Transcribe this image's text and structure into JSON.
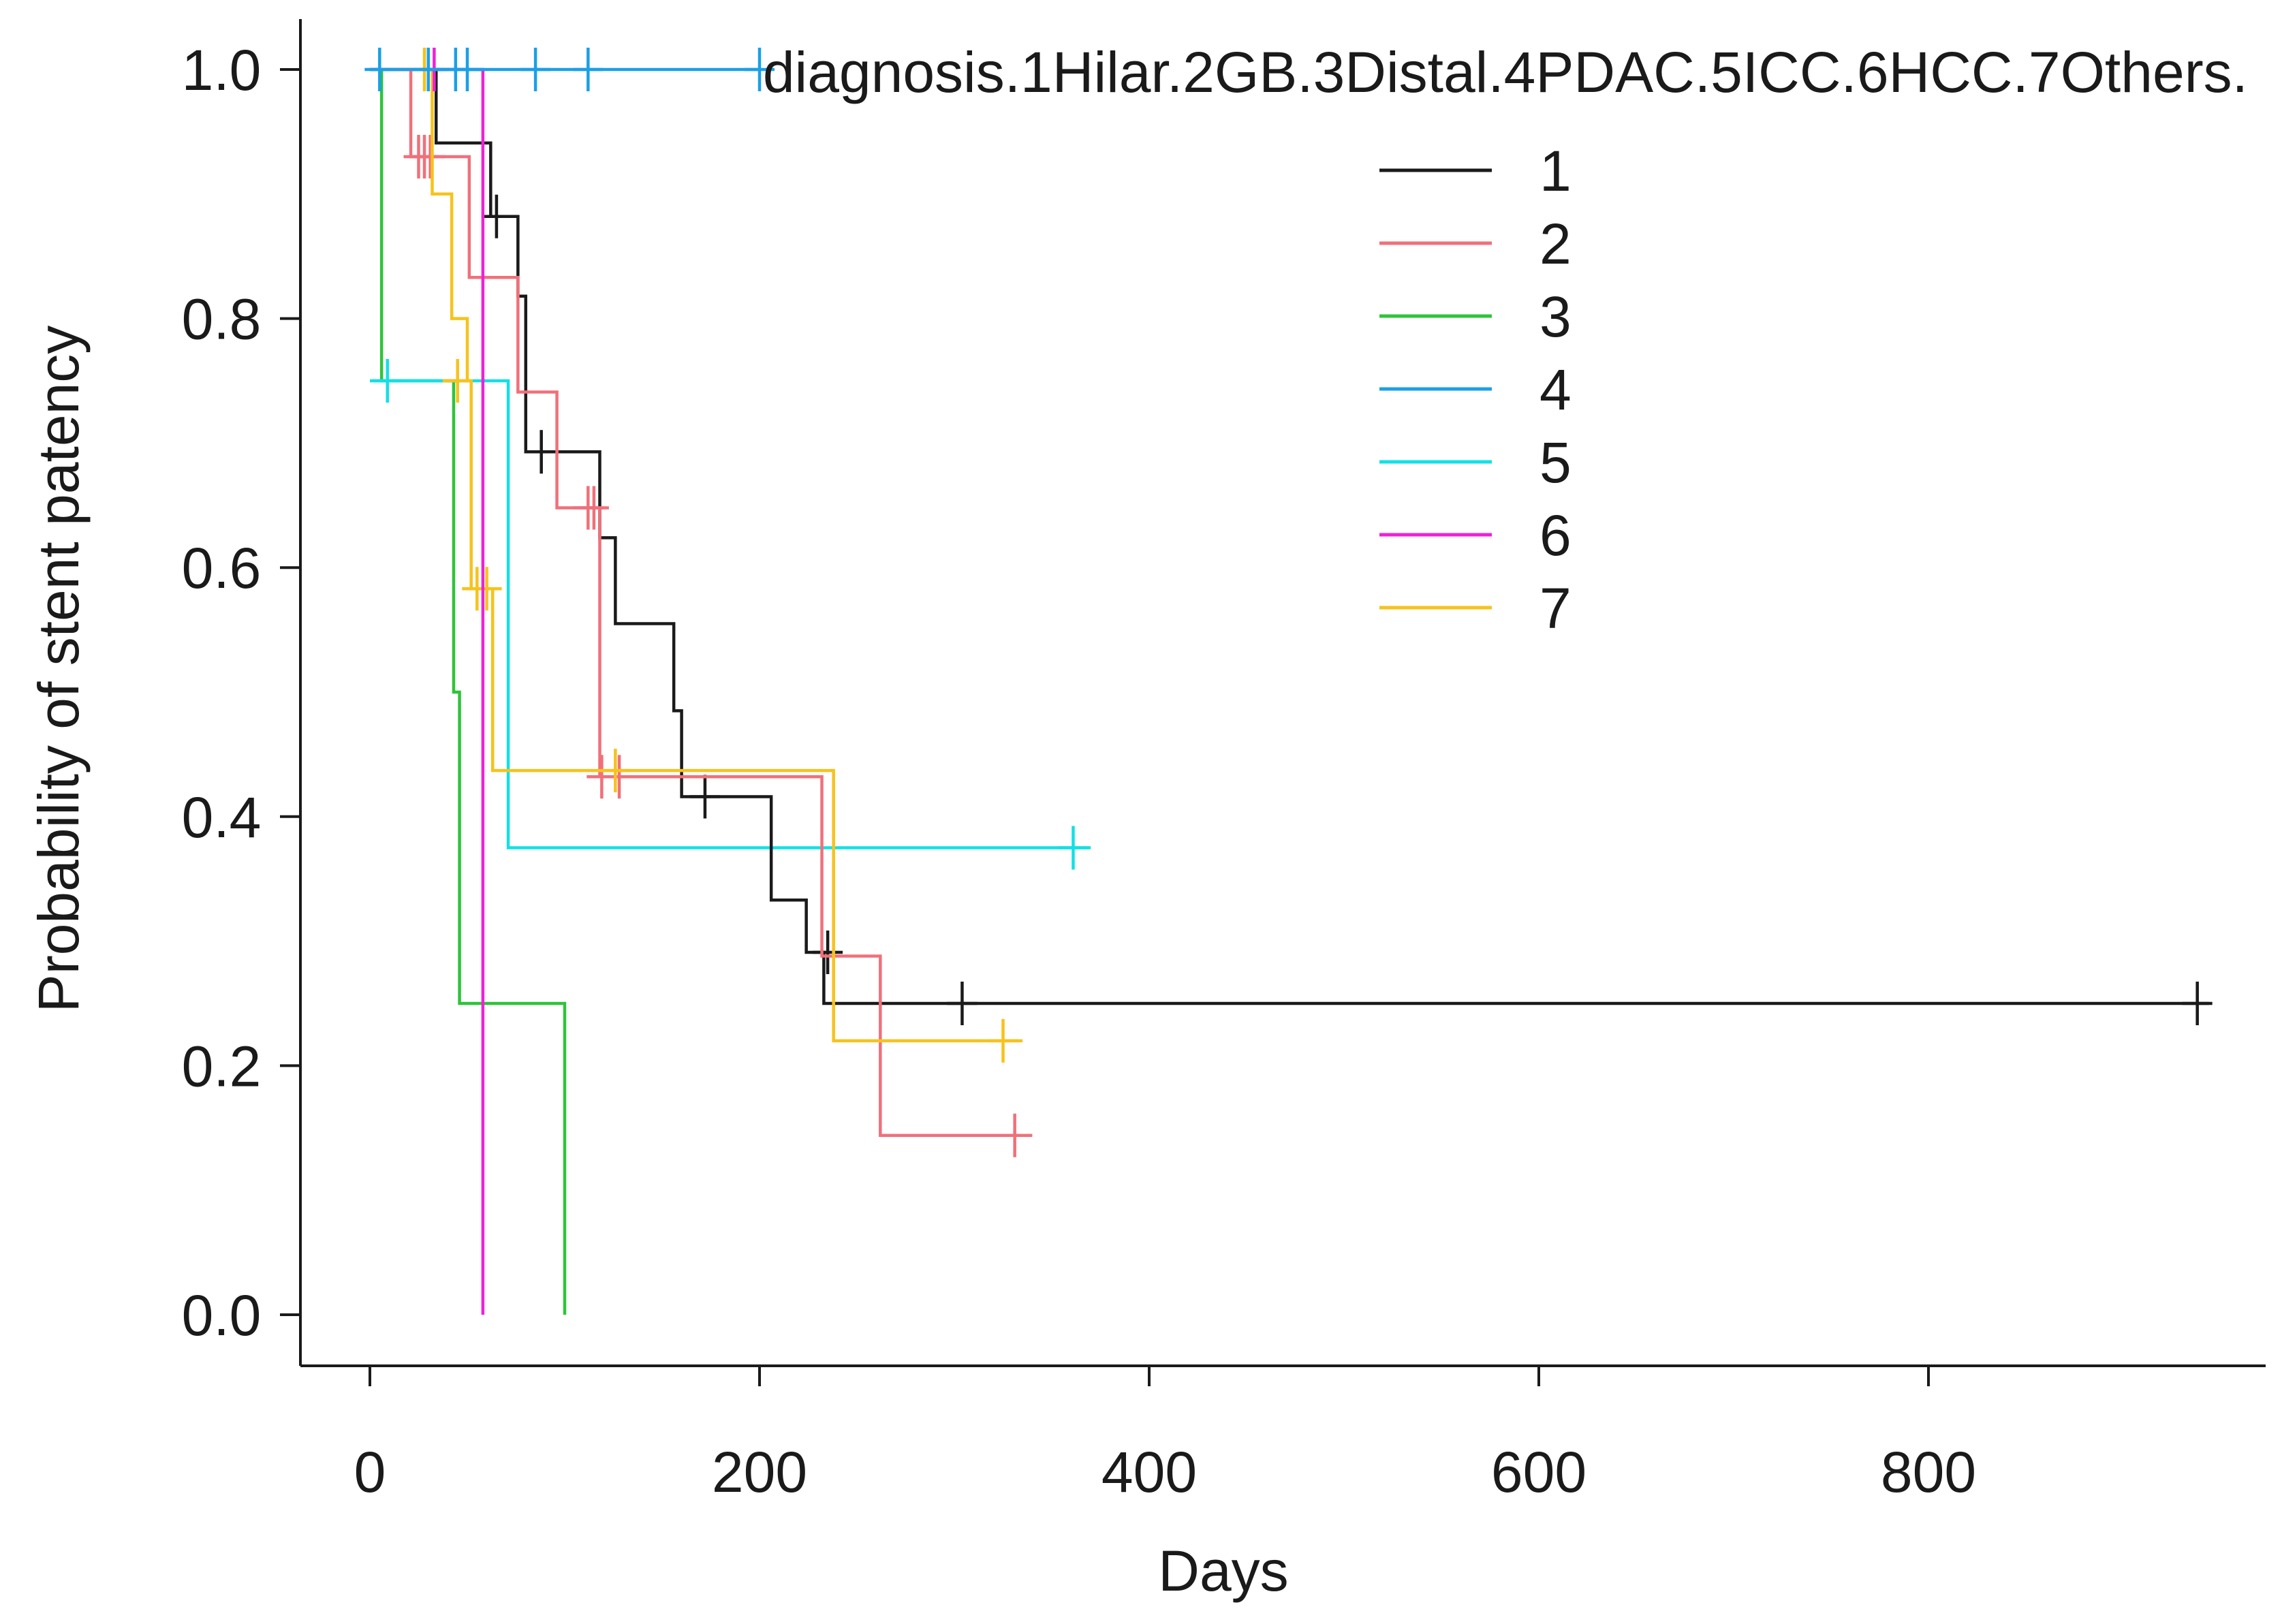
{
  "chart_data": {
    "type": "line",
    "subtype": "kaplan-meier",
    "title": "",
    "xlabel": "Days",
    "ylabel": "Probability of stent patency",
    "xlim": [
      0,
      950
    ],
    "ylim": [
      0,
      1
    ],
    "xticks": [
      0,
      200,
      400,
      600,
      800
    ],
    "yticks": [
      0.0,
      0.2,
      0.4,
      0.6,
      0.8,
      1.0
    ],
    "xtick_labels": [
      "0",
      "200",
      "400",
      "600",
      "800"
    ],
    "ytick_labels": [
      "0.0",
      "0.2",
      "0.4",
      "0.6",
      "0.8",
      "1.0"
    ],
    "grid": false,
    "legend": {
      "title": "diagnosis.1Hilar.2GB.3Distal.4PDAC.5ICC.6HCC.7Others.",
      "position": "top-right"
    },
    "series": [
      {
        "name": "1",
        "color": "#1a1a1a",
        "steps": [
          [
            0,
            1.0
          ],
          [
            34,
            0.941
          ],
          [
            62,
            0.882
          ],
          [
            76,
            0.818
          ],
          [
            80,
            0.693
          ],
          [
            118,
            0.624
          ],
          [
            126,
            0.555
          ],
          [
            156,
            0.485
          ],
          [
            160,
            0.416
          ],
          [
            206,
            0.333
          ],
          [
            224,
            0.291
          ],
          [
            233,
            0.25
          ],
          [
            944,
            0.25
          ]
        ],
        "censored": [
          [
            65,
            0.882
          ],
          [
            88,
            0.693
          ],
          [
            172,
            0.416
          ],
          [
            235,
            0.291
          ],
          [
            304,
            0.25
          ],
          [
            938,
            0.25
          ]
        ]
      },
      {
        "name": "2",
        "color": "#f0707a",
        "steps": [
          [
            0,
            1.0
          ],
          [
            21,
            0.93
          ],
          [
            51,
            0.833
          ],
          [
            76,
            0.741
          ],
          [
            96,
            0.648
          ],
          [
            118,
            0.432
          ],
          [
            232,
            0.288
          ],
          [
            262,
            0.144
          ],
          [
            340,
            0.144
          ]
        ],
        "censored": [
          [
            25,
            0.93
          ],
          [
            28,
            0.93
          ],
          [
            31,
            0.93
          ],
          [
            112,
            0.648
          ],
          [
            115,
            0.648
          ],
          [
            119,
            0.432
          ],
          [
            128,
            0.432
          ],
          [
            331,
            0.144
          ]
        ]
      },
      {
        "name": "3",
        "color": "#2ec43a",
        "steps": [
          [
            0,
            1.0
          ],
          [
            6,
            0.75
          ],
          [
            43,
            0.5
          ],
          [
            46,
            0.25
          ],
          [
            100,
            0.0
          ]
        ],
        "censored": []
      },
      {
        "name": "4",
        "color": "#1aa0e6",
        "steps": [
          [
            0,
            1.0
          ],
          [
            200,
            1.0
          ]
        ],
        "censored": [
          [
            5,
            1.0
          ],
          [
            30,
            1.0
          ],
          [
            44,
            1.0
          ],
          [
            50,
            1.0
          ],
          [
            85,
            1.0
          ],
          [
            112,
            1.0
          ],
          [
            200,
            1.0
          ]
        ]
      },
      {
        "name": "5",
        "color": "#12e0e6",
        "steps": [
          [
            0,
            0.75
          ],
          [
            69,
            0.75
          ],
          [
            71,
            0.375
          ],
          [
            370,
            0.375
          ]
        ],
        "censored": [
          [
            9,
            0.75
          ],
          [
            361,
            0.375
          ]
        ]
      },
      {
        "name": "6",
        "color": "#f020d8",
        "steps": [
          [
            0,
            1.0
          ],
          [
            58,
            1.0
          ],
          [
            58,
            0.0
          ]
        ],
        "censored": [
          [
            33,
            1.0
          ]
        ]
      },
      {
        "name": "7",
        "color": "#f7c21c",
        "steps": [
          [
            0,
            1.0
          ],
          [
            27,
            1.0
          ],
          [
            32,
            0.9
          ],
          [
            42,
            0.8
          ],
          [
            50,
            0.75
          ],
          [
            52,
            0.583
          ],
          [
            63,
            0.437
          ],
          [
            238,
            0.22
          ],
          [
            335,
            0.22
          ]
        ],
        "censored": [
          [
            28,
            1.0
          ],
          [
            45,
            0.75
          ],
          [
            55,
            0.583
          ],
          [
            60,
            0.583
          ],
          [
            126,
            0.437
          ],
          [
            325,
            0.22
          ]
        ]
      }
    ]
  }
}
